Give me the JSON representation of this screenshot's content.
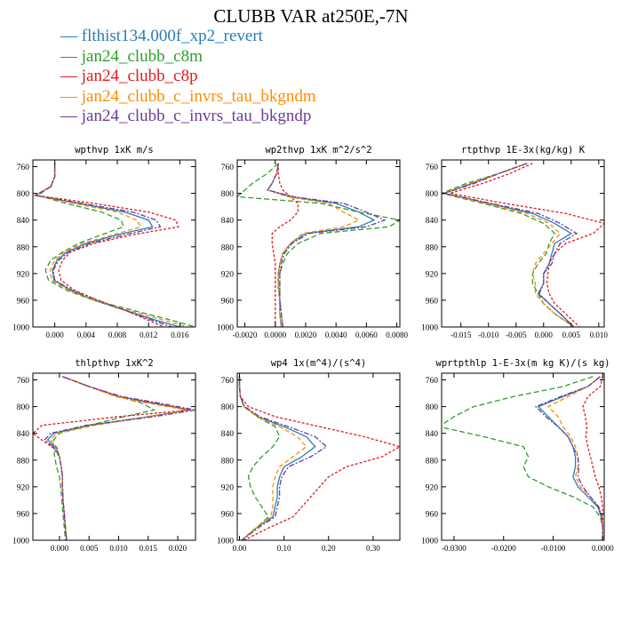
{
  "title": "CLUBB VAR at250E,-7N",
  "legend": [
    {
      "name": "flthist134.000f_xp2_revert",
      "color": "#2b7bb9"
    },
    {
      "name": "jan24_clubb_c8m",
      "color": "#2ca02c"
    },
    {
      "name": "jan24_clubb_c8p",
      "color": "#e31a1c"
    },
    {
      "name": "jan24_clubb_c_invrs_tau_bkgndm",
      "color": "#ff8c00"
    },
    {
      "name": "jan24_clubb_c_invrs_tau_bkgndp",
      "color": "#6a3d9a"
    }
  ],
  "chart_data": [
    {
      "type": "line",
      "title": "wpthvp  1xK m/s",
      "xlim": [
        -0.0028,
        0.018
      ],
      "ylim": [
        1000,
        750
      ],
      "xticks": [
        0.0,
        0.004,
        0.008,
        0.012,
        0.016
      ],
      "xticklabels": [
        "0.000",
        "0.004",
        "0.008",
        "0.012",
        "0.016"
      ],
      "yticks": [
        760,
        800,
        840,
        880,
        920,
        960,
        1000
      ],
      "y": [
        755,
        775,
        790,
        803,
        815,
        828,
        840,
        850,
        862,
        875,
        888,
        900,
        915,
        930,
        945,
        960,
        975,
        990,
        1000
      ],
      "series": [
        {
          "name": "flthist134.000f_xp2_revert",
          "color": "#2b7bb9",
          "values": [
            0.0,
            0.0,
            -0.0005,
            -0.0025,
            0.003,
            0.009,
            0.012,
            0.0125,
            0.008,
            0.004,
            0.0015,
            0.0003,
            -0.0003,
            -0.0001,
            0.002,
            0.005,
            0.009,
            0.013,
            0.016
          ]
        },
        {
          "name": "jan24_clubb_c8m",
          "color": "#2ca02c",
          "values": [
            0.0,
            0.0,
            -0.0005,
            -0.0022,
            0.0015,
            0.006,
            0.0085,
            0.0088,
            0.006,
            0.003,
            0.001,
            -0.0005,
            -0.0012,
            -0.0008,
            0.0015,
            0.005,
            0.01,
            0.015,
            0.018
          ]
        },
        {
          "name": "jan24_clubb_c8p",
          "color": "#e31a1c",
          "values": [
            0.0,
            0.0,
            -0.0005,
            -0.0025,
            0.005,
            0.012,
            0.0155,
            0.0158,
            0.01,
            0.005,
            0.002,
            0.001,
            0.0005,
            0.0008,
            0.0025,
            0.0055,
            0.009,
            0.012,
            0.014
          ]
        },
        {
          "name": "jan24_clubb_c_invrs_tau_bkgndm",
          "color": "#ff8c00",
          "values": [
            0.0,
            0.0,
            -0.0005,
            -0.0025,
            0.0025,
            0.008,
            0.0105,
            0.011,
            0.0075,
            0.0035,
            0.0012,
            0.0,
            -0.0006,
            -0.0004,
            0.0018,
            0.005,
            0.0095,
            0.014,
            0.017
          ]
        },
        {
          "name": "jan24_clubb_c_invrs_tau_bkgndp",
          "color": "#6a3d9a",
          "values": [
            0.0,
            0.0,
            -0.0005,
            -0.0025,
            0.0035,
            0.01,
            0.013,
            0.0135,
            0.009,
            0.0045,
            0.0018,
            0.0005,
            -0.0002,
            0.0,
            0.0022,
            0.0055,
            0.009,
            0.0125,
            0.015
          ]
        }
      ]
    },
    {
      "type": "line",
      "title": "wp2thvp  1xK m^2/s^2",
      "xlim": [
        -0.0025,
        0.0082
      ],
      "ylim": [
        1000,
        750
      ],
      "xticks": [
        -0.002,
        0.0,
        0.002,
        0.004,
        0.006,
        0.008
      ],
      "xticklabels": [
        "-0.0020",
        "0.0000",
        "0.0020",
        "0.0040",
        "0.0060",
        "0.0080"
      ],
      "yticks": [
        760,
        800,
        840,
        880,
        920,
        960,
        1000
      ],
      "y": [
        755,
        770,
        785,
        795,
        805,
        815,
        828,
        840,
        850,
        860,
        875,
        890,
        905,
        920,
        940,
        960,
        980,
        1000
      ],
      "series": [
        {
          "name": "flthist134.000f_xp2_revert",
          "color": "#2b7bb9",
          "values": [
            0.0002,
            0.0001,
            -0.0002,
            -0.0005,
            0.001,
            0.004,
            0.0055,
            0.0065,
            0.0055,
            0.002,
            0.001,
            0.0005,
            0.0003,
            0.0002,
            0.0002,
            0.0003,
            0.0003,
            0.0004
          ]
        },
        {
          "name": "jan24_clubb_c8m",
          "color": "#2ca02c",
          "values": [
            0.0002,
            -0.0005,
            -0.0015,
            -0.002,
            -0.0025,
            0.003,
            0.0055,
            0.0082,
            0.0075,
            0.003,
            0.0015,
            0.0008,
            0.0005,
            0.0003,
            0.0003,
            0.0003,
            0.0004,
            0.0005
          ]
        },
        {
          "name": "jan24_clubb_c8p",
          "color": "#e31a1c",
          "values": [
            0.0002,
            0.0002,
            0.0003,
            0.0005,
            0.001,
            0.0015,
            0.0015,
            0.001,
            0.0003,
            -0.0002,
            -0.0002,
            -0.0001,
            0.0,
            0.0,
            0.0,
            0.0,
            0.0,
            0.0
          ]
        },
        {
          "name": "jan24_clubb_c_invrs_tau_bkgndm",
          "color": "#ff8c00",
          "values": [
            0.0002,
            0.0001,
            -0.0002,
            -0.0005,
            0.0008,
            0.0035,
            0.0045,
            0.0055,
            0.0045,
            0.0018,
            0.001,
            0.0005,
            0.0003,
            0.0002,
            0.0002,
            0.0003,
            0.0003,
            0.0004
          ]
        },
        {
          "name": "jan24_clubb_c_invrs_tau_bkgndp",
          "color": "#6a3d9a",
          "values": [
            0.0002,
            0.0001,
            -0.0002,
            -0.0005,
            0.0012,
            0.0045,
            0.006,
            0.0072,
            0.006,
            0.0022,
            0.0011,
            0.0006,
            0.0004,
            0.0003,
            0.0003,
            0.0003,
            0.0004,
            0.0005
          ]
        }
      ]
    },
    {
      "type": "line",
      "title": "rtpthvp  1E-3x(kg/kg) K",
      "xlim": [
        -0.0185,
        0.011
      ],
      "ylim": [
        1000,
        750
      ],
      "xticks": [
        -0.015,
        -0.01,
        -0.005,
        0.0,
        0.005,
        0.01
      ],
      "xticklabels": [
        "-0.015",
        "-0.010",
        "-0.005",
        "0.000",
        "0.005",
        "0.010"
      ],
      "yticks": [
        760,
        800,
        840,
        880,
        920,
        960,
        1000
      ],
      "y": [
        755,
        770,
        785,
        800,
        815,
        830,
        845,
        860,
        875,
        890,
        905,
        920,
        935,
        950,
        965,
        980,
        1000
      ],
      "series": [
        {
          "name": "flthist134.000f_xp2_revert",
          "color": "#2b7bb9",
          "values": [
            -0.003,
            -0.008,
            -0.013,
            -0.018,
            -0.01,
            -0.002,
            0.002,
            0.005,
            0.002,
            0.0015,
            0.001,
            0.0,
            0.0,
            -0.001,
            0.001,
            0.003,
            0.0055
          ]
        },
        {
          "name": "jan24_clubb_c8m",
          "color": "#2ca02c",
          "values": [
            -0.003,
            -0.008,
            -0.014,
            -0.0185,
            -0.011,
            -0.004,
            0.0,
            0.002,
            0.001,
            0.0005,
            -0.001,
            -0.002,
            -0.002,
            -0.001,
            0.0,
            0.002,
            0.0055
          ]
        },
        {
          "name": "jan24_clubb_c8p",
          "color": "#e31a1c",
          "values": [
            -0.002,
            -0.006,
            -0.011,
            -0.017,
            -0.007,
            0.004,
            0.011,
            0.009,
            0.004,
            0.002,
            0.001,
            0.0008,
            0.0006,
            0.001,
            0.002,
            0.004,
            0.0065
          ]
        },
        {
          "name": "jan24_clubb_c_invrs_tau_bkgndm",
          "color": "#ff8c00",
          "values": [
            -0.003,
            -0.008,
            -0.0135,
            -0.018,
            -0.0105,
            -0.003,
            0.001,
            0.003,
            0.0015,
            0.0,
            -0.0015,
            -0.002,
            -0.0015,
            -0.0015,
            0.0,
            0.002,
            0.0055
          ]
        },
        {
          "name": "jan24_clubb_c_invrs_tau_bkgndp",
          "color": "#6a3d9a",
          "values": [
            -0.003,
            -0.008,
            -0.0125,
            -0.018,
            -0.0095,
            -0.001,
            0.003,
            0.006,
            0.003,
            0.002,
            0.0015,
            0.0,
            0.0,
            -0.0008,
            0.001,
            0.003,
            0.0055
          ]
        }
      ]
    },
    {
      "type": "line",
      "title": "thlpthvp  1xK^2",
      "xlim": [
        -0.0045,
        0.023
      ],
      "ylim": [
        1000,
        750
      ],
      "xticks": [
        0.0,
        0.005,
        0.01,
        0.015,
        0.02
      ],
      "xticklabels": [
        "0.000",
        "0.005",
        "0.010",
        "0.015",
        "0.020"
      ],
      "yticks": [
        760,
        800,
        840,
        880,
        920,
        960,
        1000
      ],
      "y": [
        755,
        770,
        785,
        795,
        805,
        815,
        828,
        840,
        850,
        862,
        875,
        890,
        905,
        920,
        940,
        960,
        980,
        1000
      ],
      "series": [
        {
          "name": "flthist134.000f_xp2_revert",
          "color": "#2b7bb9",
          "values": [
            0.0005,
            0.005,
            0.01,
            0.016,
            0.022,
            0.015,
            0.005,
            -0.001,
            -0.002,
            -0.0005,
            0.0,
            0.0003,
            0.0005,
            0.0005,
            0.0006,
            0.0008,
            0.001,
            0.0012
          ]
        },
        {
          "name": "jan24_clubb_c8m",
          "color": "#2ca02c",
          "values": [
            0.0005,
            0.005,
            0.01,
            0.014,
            0.016,
            0.011,
            0.005,
            0.0,
            -0.001,
            -0.001,
            -0.0008,
            -0.0005,
            0.0,
            0.0002,
            0.0004,
            0.0006,
            0.0008,
            0.001
          ]
        },
        {
          "name": "jan24_clubb_c8p",
          "color": "#e31a1c",
          "values": [
            0.0005,
            0.005,
            0.01,
            0.016,
            0.022,
            0.01,
            -0.003,
            -0.0045,
            -0.003,
            -0.001,
            0.0,
            0.0003,
            0.0005,
            0.0005,
            0.0006,
            0.0008,
            0.001,
            0.0012
          ]
        },
        {
          "name": "jan24_clubb_c_invrs_tau_bkgndm",
          "color": "#ff8c00",
          "values": [
            0.0005,
            0.005,
            0.0095,
            0.015,
            0.0215,
            0.015,
            0.006,
            -0.0005,
            -0.0015,
            -0.0003,
            0.0,
            0.0003,
            0.0005,
            0.0005,
            0.0006,
            0.0008,
            0.001,
            0.0012
          ]
        },
        {
          "name": "jan24_clubb_c_invrs_tau_bkgndp",
          "color": "#6a3d9a",
          "values": [
            0.0005,
            0.005,
            0.0105,
            0.017,
            0.023,
            0.016,
            0.0045,
            -0.0015,
            -0.0025,
            -0.0008,
            0.0,
            0.0003,
            0.0005,
            0.0005,
            0.0006,
            0.0008,
            0.001,
            0.0012
          ]
        }
      ]
    },
    {
      "type": "line",
      "title": "wp4  1x(m^4)/(s^4)",
      "xlim": [
        -0.005,
        0.36
      ],
      "ylim": [
        1000,
        750
      ],
      "xticks": [
        0.0,
        0.1,
        0.2,
        0.3
      ],
      "xticklabels": [
        "0.00",
        "0.10",
        "0.20",
        "0.30"
      ],
      "yticks": [
        760,
        800,
        840,
        880,
        920,
        960,
        1000
      ],
      "y": [
        755,
        770,
        785,
        800,
        815,
        830,
        845,
        860,
        875,
        890,
        905,
        920,
        935,
        950,
        965,
        980,
        1000
      ],
      "series": [
        {
          "name": "flthist134.000f_xp2_revert",
          "color": "#2b7bb9",
          "values": [
            0.0,
            0.0,
            0.002,
            0.01,
            0.04,
            0.1,
            0.15,
            0.17,
            0.14,
            0.1,
            0.09,
            0.085,
            0.085,
            0.08,
            0.075,
            0.04,
            0.005
          ]
        },
        {
          "name": "jan24_clubb_c8m",
          "color": "#2ca02c",
          "values": [
            0.0,
            0.0,
            0.002,
            0.01,
            0.04,
            0.08,
            0.09,
            0.075,
            0.05,
            0.03,
            0.02,
            0.025,
            0.035,
            0.05,
            0.065,
            0.04,
            0.005
          ]
        },
        {
          "name": "jan24_clubb_c8p",
          "color": "#e31a1c",
          "values": [
            0.0,
            0.0,
            0.002,
            0.02,
            0.08,
            0.18,
            0.28,
            0.36,
            0.32,
            0.24,
            0.2,
            0.18,
            0.16,
            0.14,
            0.12,
            0.07,
            0.01
          ]
        },
        {
          "name": "jan24_clubb_c_invrs_tau_bkgndm",
          "color": "#ff8c00",
          "values": [
            0.0,
            0.0,
            0.002,
            0.01,
            0.04,
            0.09,
            0.13,
            0.15,
            0.12,
            0.09,
            0.08,
            0.075,
            0.075,
            0.075,
            0.07,
            0.04,
            0.005
          ]
        },
        {
          "name": "jan24_clubb_c_invrs_tau_bkgndp",
          "color": "#6a3d9a",
          "values": [
            0.0,
            0.0,
            0.002,
            0.012,
            0.045,
            0.11,
            0.17,
            0.195,
            0.16,
            0.11,
            0.095,
            0.09,
            0.09,
            0.085,
            0.08,
            0.045,
            0.005
          ]
        }
      ]
    },
    {
      "type": "line",
      "title": "wprtpthlp  1-E-3x(m kg K)/(s kg)",
      "xlim": [
        -0.0325,
        0.0003
      ],
      "ylim": [
        1000,
        750
      ],
      "xticks": [
        -0.03,
        -0.02,
        -0.01,
        0.0
      ],
      "xticklabels": [
        "-0.0300",
        "-0.0200",
        "-0.0100",
        "0.0000"
      ],
      "yticks": [
        760,
        800,
        840,
        880,
        920,
        960,
        1000
      ],
      "y": [
        755,
        770,
        785,
        800,
        815,
        830,
        845,
        860,
        875,
        890,
        905,
        920,
        935,
        950,
        965,
        980,
        1000
      ],
      "series": [
        {
          "name": "flthist134.000f_xp2_revert",
          "color": "#2b7bb9",
          "values": [
            -0.0005,
            -0.003,
            -0.008,
            -0.013,
            -0.011,
            -0.009,
            -0.007,
            -0.006,
            -0.0055,
            -0.0055,
            -0.006,
            -0.005,
            -0.003,
            -0.001,
            -0.0003,
            0.0,
            0.0
          ]
        },
        {
          "name": "jan24_clubb_c8m",
          "color": "#2ca02c",
          "values": [
            -0.002,
            -0.008,
            -0.018,
            -0.026,
            -0.03,
            -0.033,
            -0.024,
            -0.016,
            -0.015,
            -0.016,
            -0.015,
            -0.011,
            -0.006,
            -0.002,
            -0.0005,
            0.0,
            0.0
          ]
        },
        {
          "name": "jan24_clubb_c8p",
          "color": "#e31a1c",
          "values": [
            0.0,
            -0.0005,
            -0.003,
            -0.004,
            -0.0035,
            -0.0032,
            -0.0034,
            -0.003,
            -0.0025,
            -0.002,
            -0.0015,
            -0.0008,
            -0.0003,
            0.0,
            0.0,
            0.0,
            0.0
          ]
        },
        {
          "name": "jan24_clubb_c_invrs_tau_bkgndm",
          "color": "#ff8c00",
          "values": [
            -0.0005,
            -0.003,
            -0.007,
            -0.011,
            -0.009,
            -0.008,
            -0.0065,
            -0.0055,
            -0.005,
            -0.005,
            -0.0055,
            -0.0045,
            -0.0025,
            -0.0008,
            -0.0002,
            0.0,
            0.0
          ]
        },
        {
          "name": "jan24_clubb_c_invrs_tau_bkgndp",
          "color": "#6a3d9a",
          "values": [
            -0.0005,
            -0.003,
            -0.0085,
            -0.0135,
            -0.0115,
            -0.009,
            -0.007,
            -0.006,
            -0.005,
            -0.0048,
            -0.005,
            -0.004,
            -0.0025,
            -0.0008,
            -0.0002,
            0.0,
            0.0
          ]
        }
      ]
    }
  ]
}
